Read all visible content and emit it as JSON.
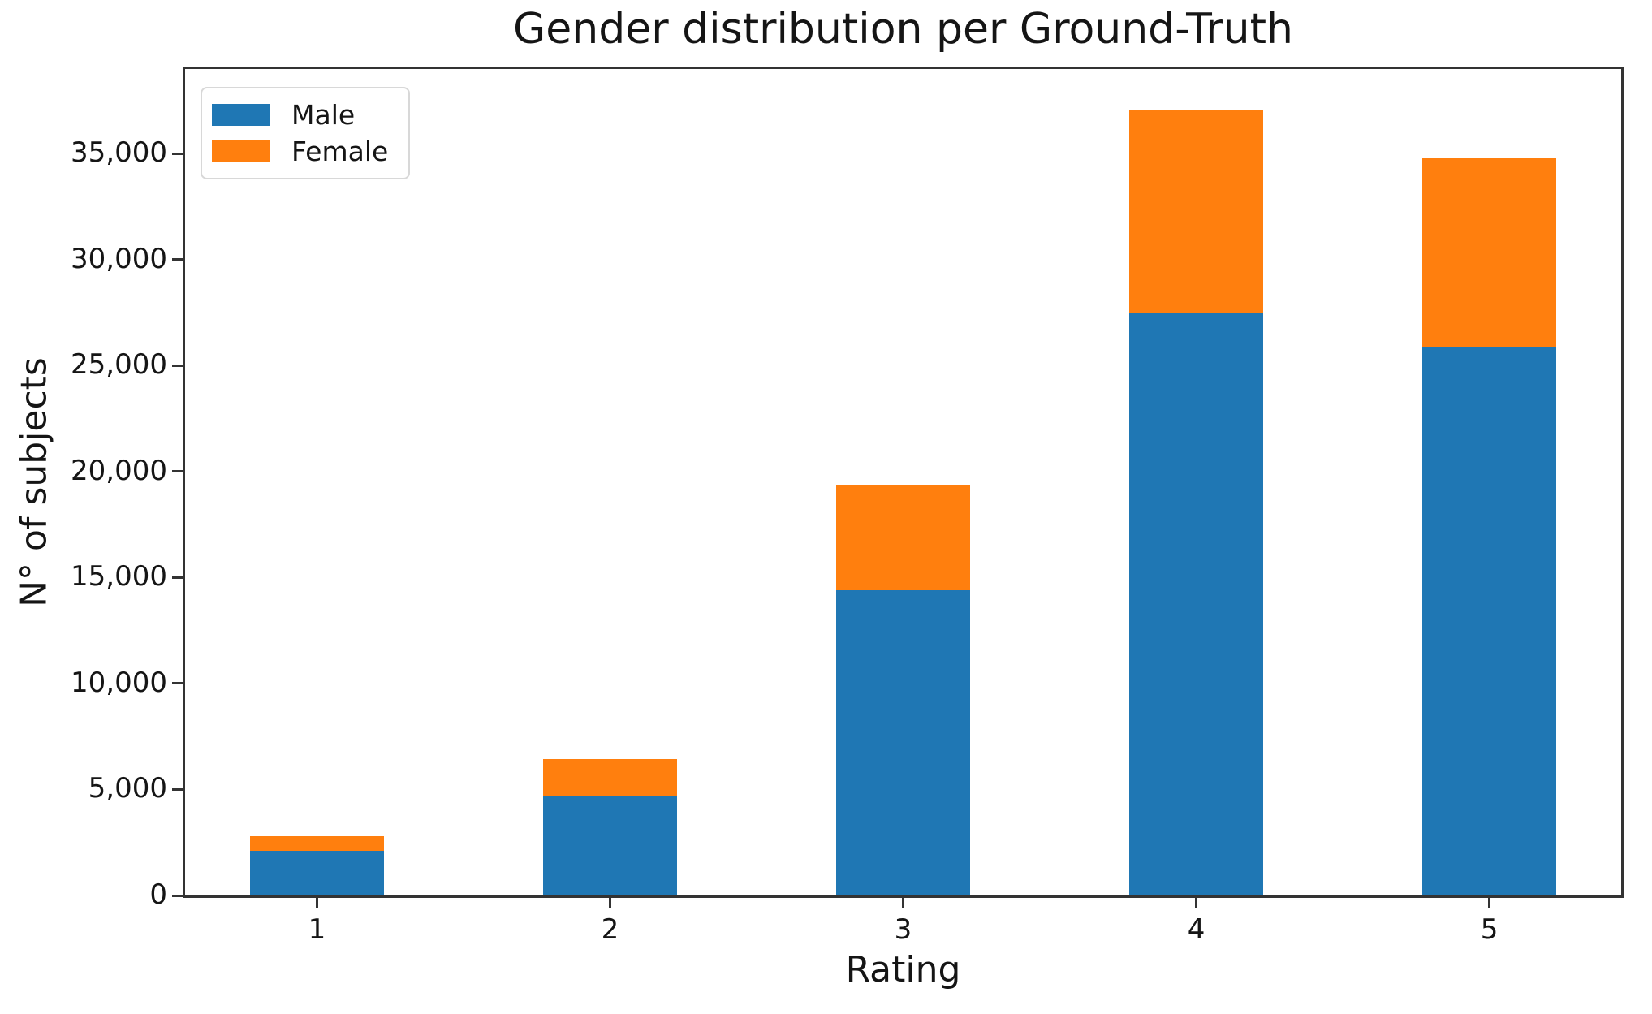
{
  "chart_data": {
    "type": "bar",
    "stacked": true,
    "title": "Gender distribution per Ground-Truth",
    "xlabel": "Rating",
    "ylabel": "N° of subjects",
    "categories": [
      "1",
      "2",
      "3",
      "4",
      "5"
    ],
    "series": [
      {
        "name": "Male",
        "color": "#1f77b4",
        "values": [
          2100,
          4700,
          14400,
          27500,
          25900
        ]
      },
      {
        "name": "Female",
        "color": "#ff7f0e",
        "values": [
          700,
          1750,
          5000,
          9600,
          8900
        ]
      }
    ],
    "stack_totals": [
      2800,
      6450,
      19400,
      37100,
      34800
    ],
    "yticks": [
      0,
      5000,
      10000,
      15000,
      20000,
      25000,
      30000,
      35000
    ],
    "ytick_labels": [
      "0",
      "5,000",
      "10,000",
      "15,000",
      "20,000",
      "25,000",
      "30,000",
      "35,000"
    ],
    "ylim": [
      0,
      39000
    ],
    "grid": false,
    "legend_position": "upper left"
  },
  "colors": {
    "background": "#ffffff",
    "text": "#151515",
    "spine": "#333333",
    "legend_border": "#d8d8d8"
  }
}
